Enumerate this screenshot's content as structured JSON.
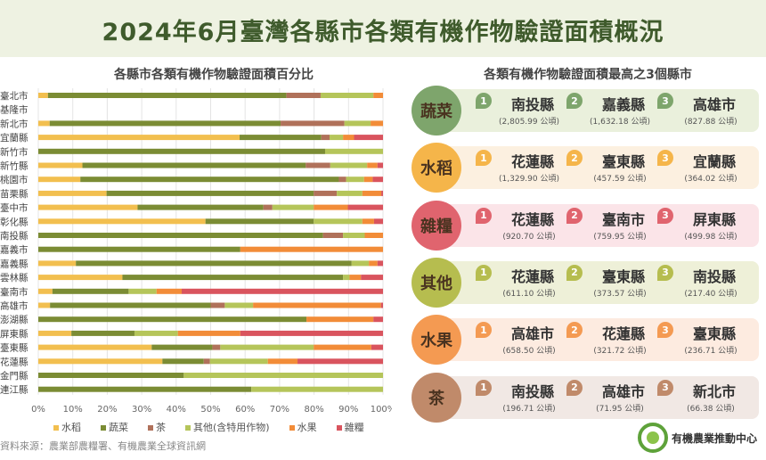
{
  "title": "2024年6月臺灣各縣市各類有機作物驗證面積概況",
  "source": "資料來源：農業部農糧署、有機農業全球資訊網",
  "logo_text": "有機農業推動中心",
  "colors": {
    "水稻": "#f2bf4f",
    "蔬菜": "#7b8c34",
    "茶": "#b0715a",
    "其他(含特用作物)": "#b5c55a",
    "水果": "#f28c38",
    "雜糧": "#d9545e"
  },
  "chart_data": {
    "type": "bar",
    "orientation": "horizontal-stacked-percent",
    "title": "各縣市各類有機作物驗證面積百分比",
    "xlim": [
      0,
      100
    ],
    "xticks": [
      "0%",
      "10%",
      "20%",
      "30%",
      "40%",
      "50%",
      "60%",
      "70%",
      "80%",
      "90%",
      "100%"
    ],
    "grid": true,
    "legend": "bottom",
    "categories": [
      "臺北市",
      "基隆市",
      "新北市",
      "宜蘭縣",
      "新竹市",
      "新竹縣",
      "桃園市",
      "苗栗縣",
      "臺中市",
      "彰化縣",
      "南投縣",
      "嘉義市",
      "嘉義縣",
      "雲林縣",
      "臺南市",
      "高雄市",
      "澎湖縣",
      "屏東縣",
      "臺東縣",
      "花蓮縣",
      "金門縣",
      "連江縣"
    ],
    "series": [
      {
        "name": "水稻",
        "values": [
          2.8,
          0,
          3.3,
          58.4,
          0,
          12.8,
          12.2,
          19.8,
          28.8,
          48.5,
          0,
          0,
          10.9,
          24.4,
          4.1,
          3.4,
          0,
          9.6,
          32.9,
          36,
          0,
          0
        ]
      },
      {
        "name": "蔬菜",
        "values": [
          69.2,
          0,
          67,
          23.7,
          83.2,
          64.8,
          75,
          60.1,
          36.5,
          31.4,
          82.6,
          58.6,
          80,
          64,
          22.1,
          46.6,
          77.8,
          18.3,
          17.6,
          12,
          42.2,
          61.8
        ]
      },
      {
        "name": "茶",
        "values": [
          9.9,
          0,
          18.5,
          2.4,
          0,
          7.1,
          2.1,
          6.7,
          2.6,
          0,
          5.8,
          0,
          0,
          0,
          0,
          4.1,
          0,
          0,
          2.3,
          1.8,
          0,
          0
        ]
      },
      {
        "name": "其他(含特用作物)",
        "values": [
          15.3,
          0,
          7.6,
          3.9,
          16.8,
          10.7,
          5.2,
          7.4,
          12,
          14.1,
          6.3,
          0,
          5,
          1.9,
          8.1,
          8.2,
          0,
          12.6,
          27.1,
          16.8,
          57.8,
          38.2
        ]
      },
      {
        "name": "水果",
        "values": [
          2.8,
          0,
          3.6,
          3.2,
          0,
          3,
          2.5,
          5.5,
          9.9,
          3.4,
          5.3,
          41.4,
          2.5,
          3.3,
          7.3,
          37.1,
          19.4,
          18.1,
          16.7,
          8.6,
          0,
          0
        ]
      },
      {
        "name": "雜糧",
        "values": [
          0,
          0,
          0,
          8.4,
          0,
          1.6,
          3,
          0.5,
          10.2,
          2.6,
          0,
          0,
          1.6,
          6.4,
          58.4,
          0.6,
          2.8,
          41.4,
          3.4,
          24.8,
          0,
          0
        ]
      }
    ]
  },
  "ranking": {
    "title": "各類有機作物驗證面積最高之3個縣市",
    "categories": [
      {
        "name": "蔬菜",
        "color": "#7ea56c",
        "bg": "#eaf0dc",
        "top": [
          {
            "rank": "1",
            "city": "南投縣",
            "area": "(2,805.99 公頃)"
          },
          {
            "rank": "2",
            "city": "嘉義縣",
            "area": "(1,632.18 公頃)"
          },
          {
            "rank": "3",
            "city": "高雄市",
            "area": "(827.88 公頃)"
          }
        ]
      },
      {
        "name": "水稻",
        "color": "#f5b54a",
        "bg": "#fcf0e0",
        "top": [
          {
            "rank": "1",
            "city": "花蓮縣",
            "area": "(1,329.90 公頃)"
          },
          {
            "rank": "2",
            "city": "臺東縣",
            "area": "(457.59 公頃)"
          },
          {
            "rank": "3",
            "city": "宜蘭縣",
            "area": "(364.02 公頃)"
          }
        ]
      },
      {
        "name": "雜糧",
        "color": "#e0646e",
        "bg": "#fbe4e8",
        "top": [
          {
            "rank": "1",
            "city": "花蓮縣",
            "area": "(920.70 公頃)"
          },
          {
            "rank": "2",
            "city": "臺南市",
            "area": "(759.95 公頃)"
          },
          {
            "rank": "3",
            "city": "屏東縣",
            "area": "(499.98 公頃)"
          }
        ]
      },
      {
        "name": "其他",
        "color": "#b6bd4f",
        "bg": "#eef0d8",
        "top": [
          {
            "rank": "1",
            "city": "花蓮縣",
            "area": "(611.10 公頃)"
          },
          {
            "rank": "2",
            "city": "臺東縣",
            "area": "(373.57 公頃)"
          },
          {
            "rank": "3",
            "city": "南投縣",
            "area": "(217.40 公頃)"
          }
        ]
      },
      {
        "name": "水果",
        "color": "#f49a52",
        "bg": "#fdebe0",
        "top": [
          {
            "rank": "1",
            "city": "高雄市",
            "area": "(658.50 公頃)"
          },
          {
            "rank": "2",
            "city": "花蓮縣",
            "area": "(321.72 公頃)"
          },
          {
            "rank": "3",
            "city": "臺東縣",
            "area": "(236.71 公頃)"
          }
        ]
      },
      {
        "name": "茶",
        "color": "#c08a6a",
        "bg": "#f1e8e4",
        "top": [
          {
            "rank": "1",
            "city": "南投縣",
            "area": "(196.71 公頃)"
          },
          {
            "rank": "2",
            "city": "高雄市",
            "area": "(71.95 公頃)"
          },
          {
            "rank": "3",
            "city": "新北市",
            "area": "(66.38 公頃)"
          }
        ]
      }
    ]
  }
}
